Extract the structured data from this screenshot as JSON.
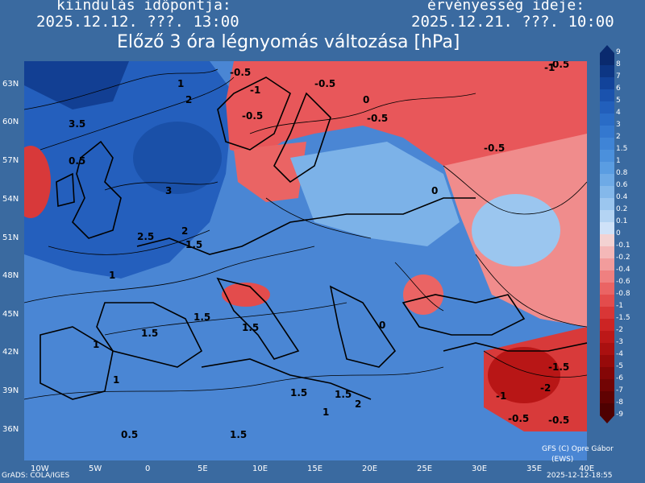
{
  "header": {
    "init_label": "kiindulás időpontja:",
    "init_value": "2025.12.12. ???. 13:00",
    "valid_label": "érvényesség ideje:",
    "valid_value": "2025.12.21. ???. 10:00",
    "title": "Előző 3 óra légnyomás változása [hPa]"
  },
  "axes": {
    "lat_labels": [
      "63N",
      "60N",
      "57N",
      "54N",
      "51N",
      "48N",
      "45N",
      "42N",
      "39N",
      "36N"
    ],
    "lon_labels": [
      "10W",
      "5W",
      "0",
      "5E",
      "10E",
      "15E",
      "20E",
      "25E",
      "30E",
      "35E",
      "40E"
    ]
  },
  "colorbar": {
    "labels": [
      "9",
      "8",
      "7",
      "6",
      "5",
      "4",
      "3",
      "2",
      "1.5",
      "1",
      "0.8",
      "0.6",
      "0.4",
      "0.2",
      "0.1",
      "0",
      "-0.1",
      "-0.2",
      "-0.4",
      "-0.6",
      "-0.8",
      "-1",
      "-1.5",
      "-2",
      "-3",
      "-4",
      "-5",
      "-6",
      "-7",
      "-8",
      "-9"
    ],
    "colors": [
      "#0a2a6e",
      "#0d3684",
      "#12439a",
      "#1a52ad",
      "#225fbb",
      "#2a6cc6",
      "#3478cf",
      "#3f84d6",
      "#4b90dc",
      "#5a9de2",
      "#6eaae6",
      "#84b8ea",
      "#9bc6ef",
      "#b4d4f3",
      "#cfe2f8",
      "#f3d2d2",
      "#f4b8b8",
      "#f29c9c",
      "#ef8080",
      "#ea6464",
      "#e34c4c",
      "#d93636",
      "#cc2424",
      "#bc1818",
      "#aa1010",
      "#970a0a",
      "#840606",
      "#720404",
      "#600202",
      "#4e0101"
    ]
  },
  "map_labels": [
    "-0.5",
    "-1",
    "-0.5",
    "-0.5",
    "0",
    "-0.5",
    "1",
    "2",
    "3",
    "3.5",
    "2.5",
    "2",
    "1.5",
    "1",
    "0.5",
    "-0.5",
    "-1",
    "-0.5",
    "0",
    "1.5",
    "1",
    "1.5",
    "0",
    "1",
    "-1",
    "-1.5",
    "-2",
    "-0.5",
    "1.5",
    "1",
    "1.5",
    "2",
    "1.5",
    "0.5",
    "-0.5",
    "1.5"
  ],
  "credits": {
    "grads": "GrADS: COLA/IGES",
    "gfs": "GFS (C) Opre Gábor",
    "ews": "(EWS)",
    "timestamp": "2025-12-12-18:55"
  }
}
